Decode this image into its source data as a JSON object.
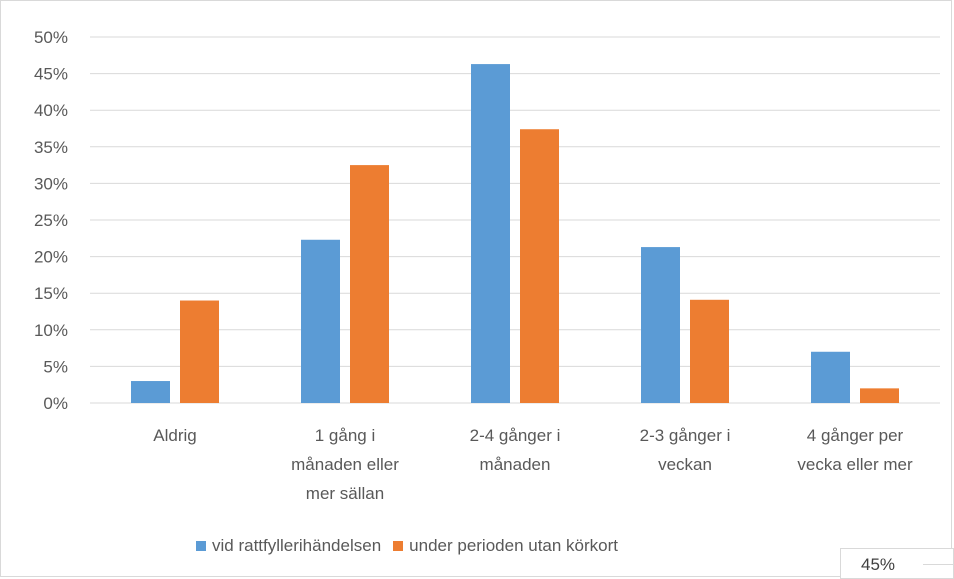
{
  "chart_data": {
    "type": "bar",
    "categories": [
      [
        "Aldrig"
      ],
      [
        "1 gång i",
        "månaden eller",
        "mer sällan"
      ],
      [
        "2-4 gånger i",
        "månaden"
      ],
      [
        "2-3 gånger i",
        "veckan"
      ],
      [
        "4 gånger per",
        "vecka eller mer"
      ]
    ],
    "series": [
      {
        "name": "vid rattfyllerihändelsen",
        "color": "#5b9bd5",
        "values": [
          3,
          22.3,
          46.3,
          21.3,
          7
        ]
      },
      {
        "name": "under perioden utan körkort",
        "color": "#ed7d31",
        "values": [
          14,
          32.5,
          37.4,
          14.1,
          2
        ]
      }
    ],
    "ylim": [
      0,
      50
    ],
    "yticks": [
      "0%",
      "5%",
      "10%",
      "15%",
      "20%",
      "25%",
      "30%",
      "35%",
      "40%",
      "45%",
      "50%"
    ],
    "grid": true,
    "legend_position": "bottom"
  },
  "tooltip": {
    "value": "45%"
  }
}
